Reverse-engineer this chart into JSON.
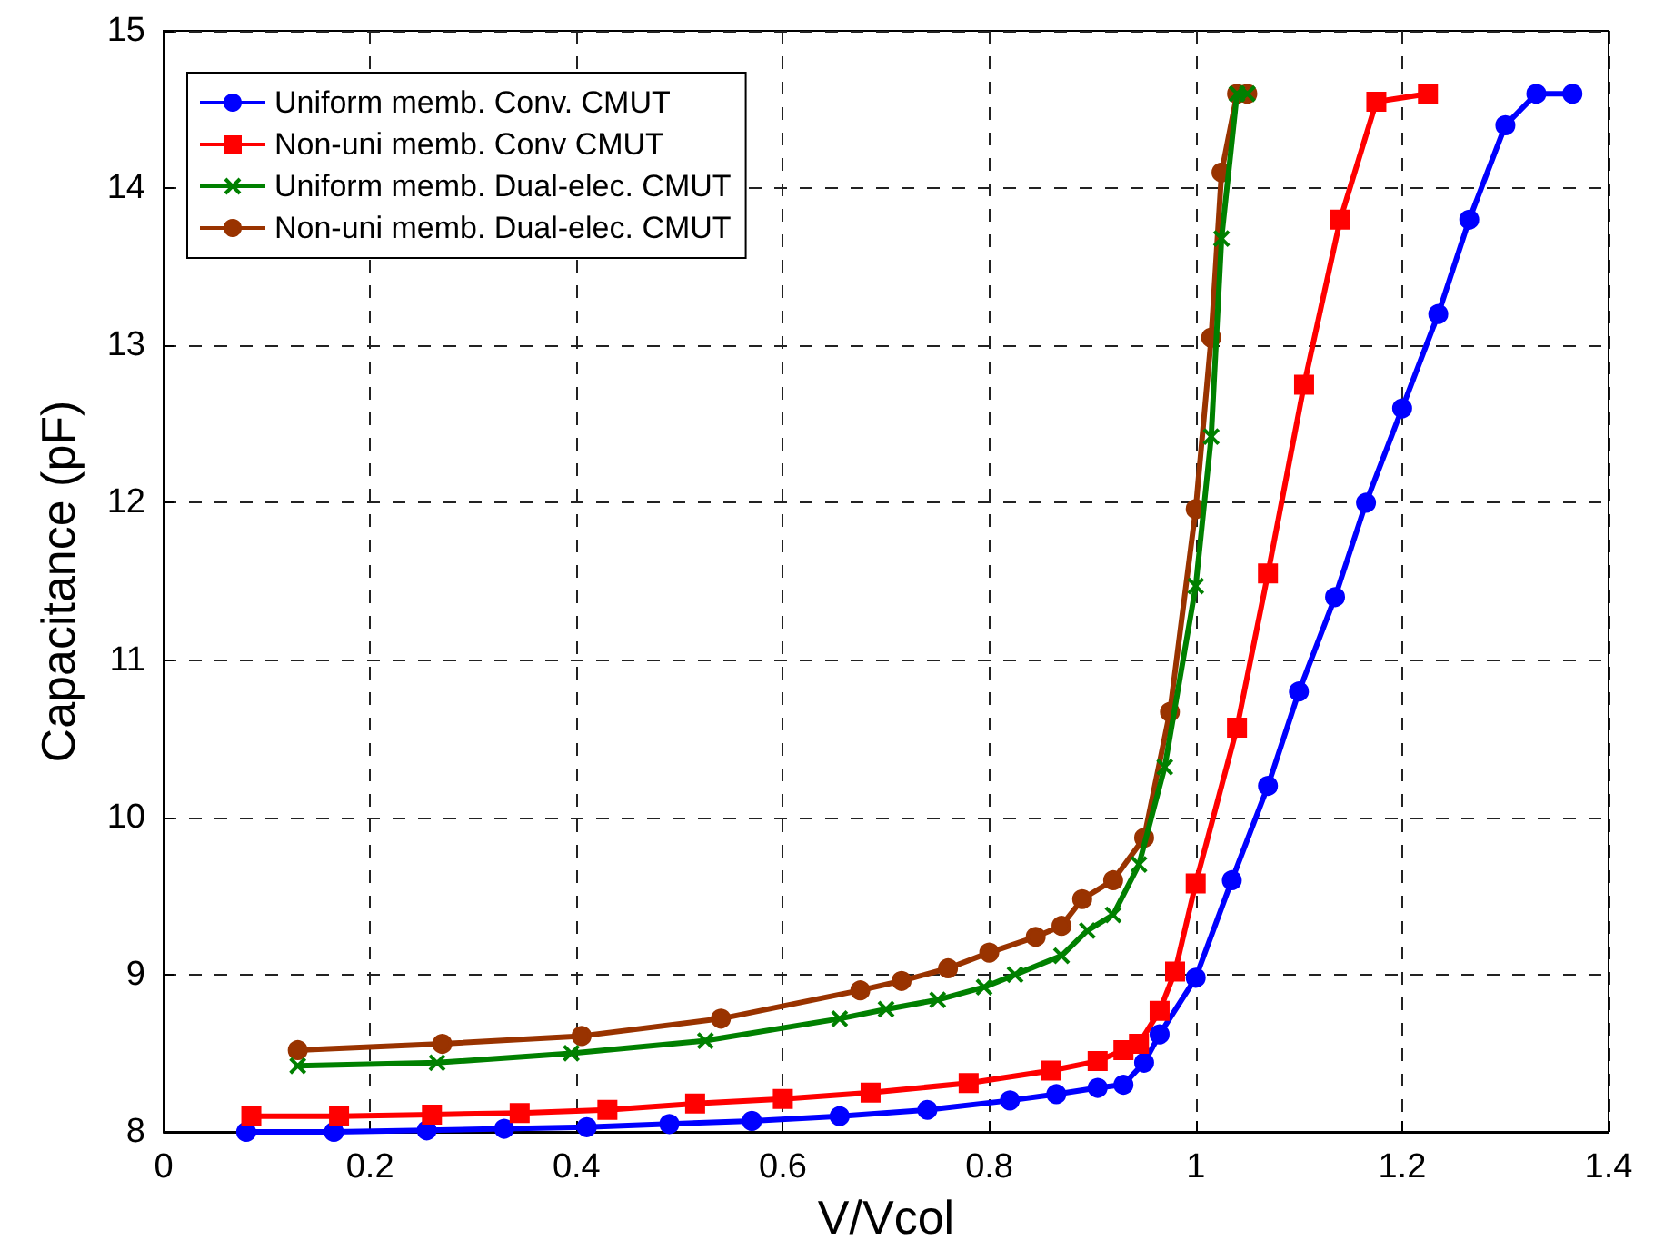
{
  "chart_data": {
    "type": "line",
    "xlabel": "V/Vcol",
    "ylabel": "Capacitance (pF)",
    "xlim": [
      0,
      1.4
    ],
    "xticks": [
      0,
      0.2,
      0.4,
      0.6,
      0.8,
      1,
      1.2,
      1.4
    ],
    "ylim": [
      8,
      15
    ],
    "yticks": [
      8,
      9,
      10,
      11,
      12,
      13,
      14,
      15
    ],
    "grid": true,
    "legend": "top left",
    "line_style": "solid",
    "series": [
      {
        "name": "Uniform memb. Conv. CMUT",
        "color": "#0000ff",
        "marker": "circle",
        "x": [
          0.08,
          0.165,
          0.255,
          0.33,
          0.41,
          0.49,
          0.57,
          0.655,
          0.74,
          0.82,
          0.865,
          0.905,
          0.93,
          0.95,
          0.965,
          1.0,
          1.035,
          1.07,
          1.1,
          1.135,
          1.165,
          1.2,
          1.235,
          1.265,
          1.3,
          1.33,
          1.365
        ],
        "values": [
          8.0,
          8.0,
          8.01,
          8.02,
          8.03,
          8.05,
          8.07,
          8.1,
          8.14,
          8.2,
          8.24,
          8.28,
          8.3,
          8.44,
          8.62,
          8.98,
          9.6,
          10.2,
          10.8,
          11.4,
          12.0,
          12.6,
          13.2,
          13.8,
          14.4,
          14.6,
          14.6
        ]
      },
      {
        "name": "Non-uni memb. Conv CMUT",
        "color": "#ff0000",
        "marker": "square",
        "x": [
          0.085,
          0.17,
          0.26,
          0.345,
          0.43,
          0.515,
          0.6,
          0.685,
          0.78,
          0.86,
          0.905,
          0.93,
          0.945,
          0.965,
          0.98,
          1.0,
          1.04,
          1.07,
          1.105,
          1.14,
          1.175,
          1.225
        ],
        "values": [
          8.1,
          8.1,
          8.11,
          8.12,
          8.14,
          8.18,
          8.21,
          8.25,
          8.31,
          8.39,
          8.45,
          8.52,
          8.56,
          8.77,
          9.02,
          9.58,
          10.57,
          11.55,
          12.75,
          13.8,
          14.55,
          14.6
        ]
      },
      {
        "name": "Uniform memb. Dual-elec. CMUT",
        "color": "#008000",
        "marker": "cross",
        "x": [
          0.13,
          0.265,
          0.395,
          0.525,
          0.655,
          0.7,
          0.75,
          0.795,
          0.825,
          0.87,
          0.895,
          0.92,
          0.945,
          0.97,
          1.0,
          1.015,
          1.025,
          1.04,
          1.05
        ],
        "values": [
          8.42,
          8.44,
          8.5,
          8.58,
          8.72,
          8.78,
          8.84,
          8.92,
          9.0,
          9.12,
          9.28,
          9.38,
          9.7,
          10.32,
          11.47,
          12.42,
          13.68,
          14.6,
          14.6
        ]
      },
      {
        "name": "Non-uni memb. Dual-elec. CMUT",
        "color": "#993300",
        "marker": "circle",
        "x": [
          0.13,
          0.27,
          0.405,
          0.54,
          0.675,
          0.715,
          0.76,
          0.8,
          0.845,
          0.87,
          0.89,
          0.92,
          0.95,
          0.975,
          1.0,
          1.015,
          1.025,
          1.04,
          1.05
        ],
        "values": [
          8.52,
          8.56,
          8.61,
          8.72,
          8.9,
          8.96,
          9.04,
          9.14,
          9.24,
          9.31,
          9.48,
          9.6,
          9.87,
          10.67,
          11.96,
          13.05,
          14.1,
          14.6,
          14.6
        ]
      }
    ]
  }
}
